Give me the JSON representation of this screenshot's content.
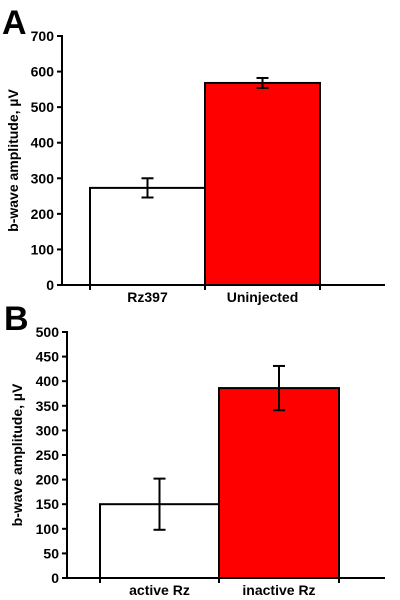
{
  "chart_data": [
    {
      "type": "bar",
      "panel": "A",
      "categories": [
        "Rz397",
        "Uninjected"
      ],
      "values": [
        273,
        568
      ],
      "errors": [
        27,
        14
      ],
      "colors": [
        "#ffffff",
        "#ff0000"
      ],
      "ylabel": "b-wave amplitude, µV",
      "ylim": [
        0,
        700
      ],
      "yticks": [
        0,
        100,
        200,
        300,
        400,
        500,
        600,
        700
      ],
      "grid": false
    },
    {
      "type": "bar",
      "panel": "B",
      "categories": [
        "active Rz",
        "inactive Rz"
      ],
      "values": [
        150,
        386
      ],
      "errors": [
        52,
        45
      ],
      "colors": [
        "#ffffff",
        "#ff0000"
      ],
      "ylabel": "b-wave amplitude, µV",
      "ylim": [
        0,
        500
      ],
      "yticks": [
        0,
        50,
        100,
        150,
        200,
        250,
        300,
        350,
        400,
        450,
        500
      ],
      "grid": false
    }
  ]
}
